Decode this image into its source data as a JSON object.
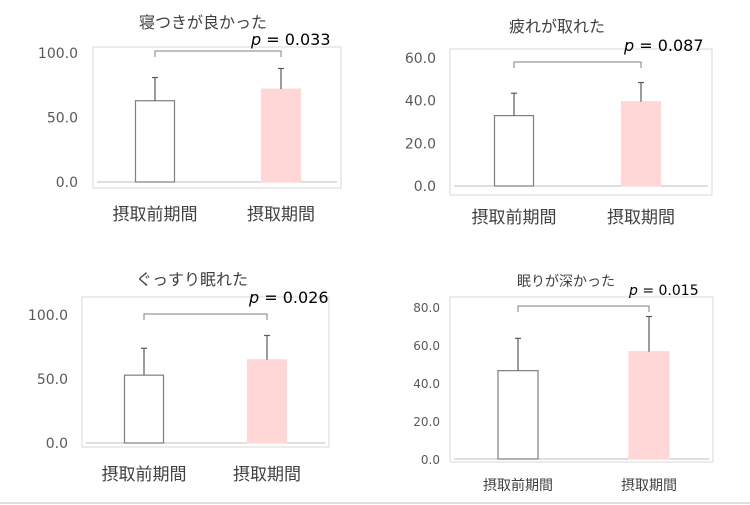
{
  "p_prefix": "p",
  "categories": [
    "摂取前期間",
    "摂取期間"
  ],
  "colors": {
    "before_fill": "#ffffff",
    "before_stroke": "#7f7f7f",
    "during_fill": "#ffd7d7",
    "during_stroke": "#ffd7d7"
  },
  "chart_data": [
    {
      "type": "bar",
      "title": "寝つきが良かった",
      "categories": [
        "摂取前期間",
        "摂取期間"
      ],
      "values": [
        63,
        72
      ],
      "error": [
        18,
        16
      ],
      "ylim": [
        0,
        100
      ],
      "yticks": [
        "0.0",
        "50.0",
        "100.0"
      ],
      "p_value": "= 0.033",
      "grid": false
    },
    {
      "type": "bar",
      "title": "疲れが取れた",
      "categories": [
        "摂取前期間",
        "摂取期間"
      ],
      "values": [
        33,
        39.5
      ],
      "error": [
        10.5,
        9
      ],
      "ylim": [
        0,
        60
      ],
      "yticks": [
        "0.0",
        "20.0",
        "40.0",
        "60.0"
      ],
      "p_value": "= 0.087",
      "grid": false
    },
    {
      "type": "bar",
      "title": "ぐっすり眠れた",
      "categories": [
        "摂取前期間",
        "摂取期間"
      ],
      "values": [
        53,
        65
      ],
      "error": [
        21,
        19
      ],
      "ylim": [
        0,
        100
      ],
      "yticks": [
        "0.0",
        "50.0",
        "100.0"
      ],
      "p_value": "= 0.026",
      "grid": false
    },
    {
      "type": "bar",
      "title": "眠りが深かった",
      "categories": [
        "摂取前期間",
        "摂取期間"
      ],
      "values": [
        46.5,
        56.5
      ],
      "error": [
        17,
        18.5
      ],
      "ylim": [
        0,
        80
      ],
      "yticks": [
        "0.0",
        "20.0",
        "40.0",
        "60.0",
        "80.0"
      ],
      "p_value": "= 0.015",
      "grid": false
    }
  ]
}
